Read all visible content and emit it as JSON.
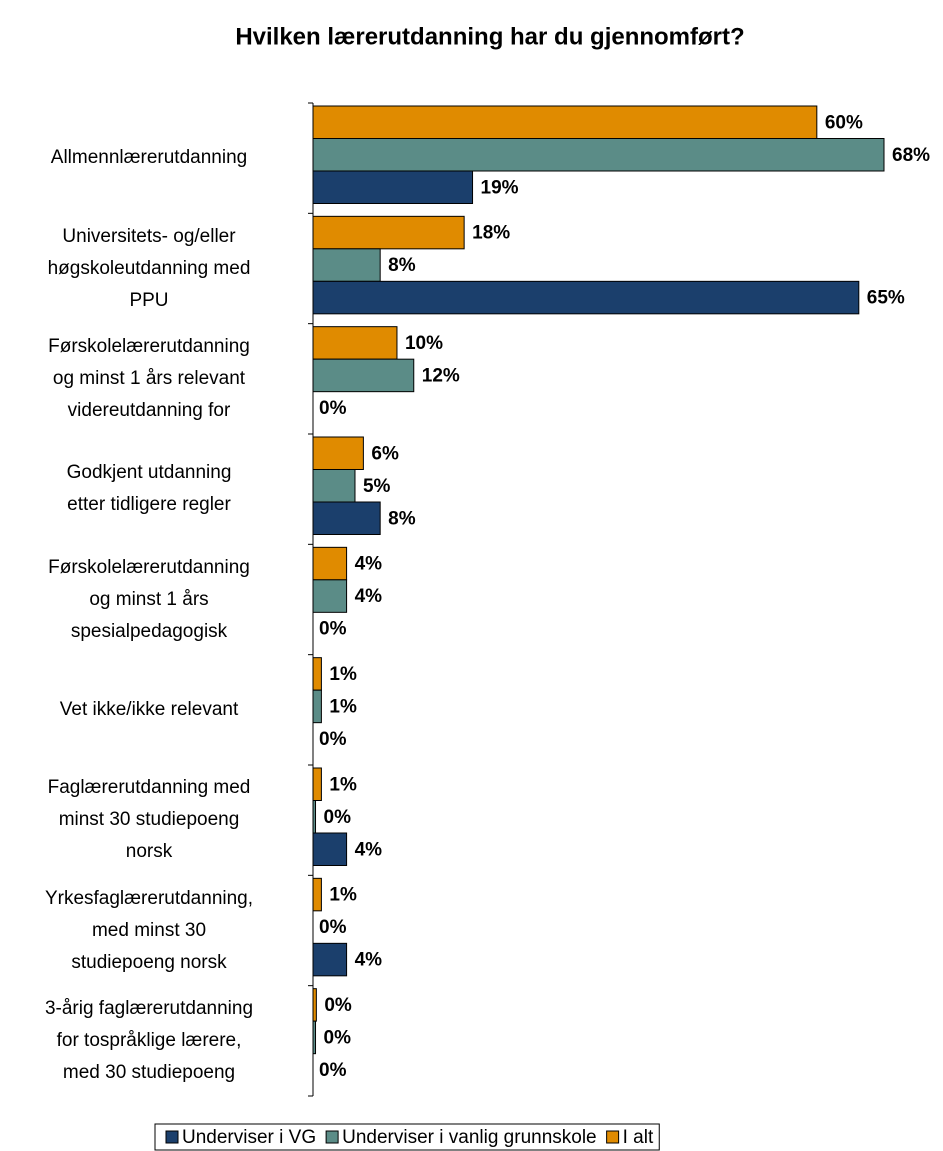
{
  "chart_data": {
    "type": "bar",
    "orientation": "horizontal",
    "title": "Hvilken lærerutdanning har du gjennomført?",
    "categories": [
      "Allmennlærerutdanning",
      "Universitets- og/eller\nhøgskoleutdanning med\nPPU",
      "Førskolelærerutdanning\nog minst 1 års relevant\nvidereutdanning for",
      "Godkjent utdanning\netter tidligere regler",
      "Førskolelærerutdanning\nog minst 1 års\nspesialpedagogisk",
      "Vet ikke/ikke relevant",
      "Faglærerutdanning med\nminst 30 studiepoeng\nnorsk",
      "Yrkesfaglærerutdanning,\nmed minst 30\nstudiepoeng norsk",
      "3-årig faglærerutdanning\nfor tospråklige lærere,\nmed 30 studiepoeng"
    ],
    "series": [
      {
        "name": "Underviser i VG",
        "color": "#1b3f6c",
        "values": [
          19,
          65,
          0,
          8,
          0,
          0,
          4,
          4,
          0
        ],
        "value_labels": [
          "19%",
          "65%",
          "0%",
          "8%",
          "0%",
          "0%",
          "4%",
          "4%",
          "0%"
        ]
      },
      {
        "name": "Underviser i vanlig grunnskole",
        "color": "#5b8c87",
        "values": [
          68,
          8,
          12,
          5,
          4,
          1,
          0.3,
          0,
          0.3
        ],
        "value_labels": [
          "68%",
          "8%",
          "12%",
          "5%",
          "4%",
          "1%",
          "0%",
          "0%",
          "0%"
        ]
      },
      {
        "name": "I alt",
        "color": "#e08b00",
        "values": [
          60,
          18,
          10,
          6,
          4,
          1,
          1,
          1,
          0.4
        ],
        "value_labels": [
          "60%",
          "18%",
          "10%",
          "6%",
          "4%",
          "1%",
          "1%",
          "1%",
          "0%"
        ]
      }
    ],
    "legend": "bottom"
  }
}
